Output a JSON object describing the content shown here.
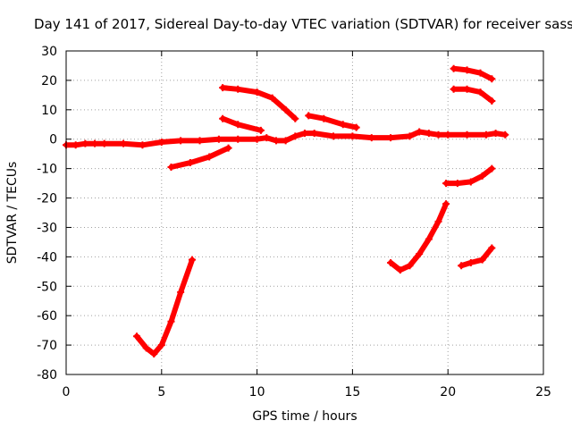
{
  "chart_data": {
    "type": "scatter",
    "title": "Day 141 of 2017, Sidereal Day-to-day VTEC variation (SDTVAR) for receiver sass",
    "xlabel": "GPS time / hours",
    "ylabel": "SDTVAR / TECUs",
    "xlim": [
      0,
      25
    ],
    "ylim": [
      -80,
      30
    ],
    "x_ticks": [
      "0",
      "5",
      "10",
      "15",
      "20",
      "25"
    ],
    "y_ticks": [
      "-80",
      "-70",
      "-60",
      "-50",
      "-40",
      "-30",
      "-20",
      "-10",
      "0",
      "10",
      "20",
      "30"
    ],
    "grid": true,
    "legend": "none",
    "color": "#ff0000",
    "series": [
      {
        "x": [
          0,
          0.5,
          1.0,
          1.5,
          2,
          3,
          4,
          5,
          6,
          7,
          8,
          9,
          10,
          10.5,
          11,
          11.5,
          12,
          12.5,
          13,
          14,
          15,
          16,
          17,
          18,
          18.5,
          19,
          19.5,
          20,
          21,
          22,
          22.5,
          23
        ],
        "y": [
          -2,
          -2,
          -1.5,
          -1.5,
          -1.5,
          -1.5,
          -2,
          -1,
          -0.5,
          -0.5,
          0,
          0,
          0,
          0.5,
          -0.5,
          -0.5,
          1,
          2,
          2,
          1,
          1,
          0.5,
          0.5,
          1,
          2.5,
          2,
          1.5,
          1.5,
          1.5,
          1.5,
          2,
          1.5
        ]
      },
      {
        "x": [
          8.2,
          9,
          10,
          10.8,
          11.5,
          12
        ],
        "y": [
          17.5,
          17,
          16,
          14,
          10,
          7
        ]
      },
      {
        "x": [
          8.2,
          9,
          10.2
        ],
        "y": [
          7,
          5,
          3
        ]
      },
      {
        "x": [
          12.7,
          13.5,
          14.5,
          15.2
        ],
        "y": [
          8,
          7,
          5,
          4
        ]
      },
      {
        "x": [
          5.5,
          6.5,
          7.5,
          8.5
        ],
        "y": [
          -9.5,
          -8,
          -6,
          -3
        ]
      },
      {
        "x": [
          3.7,
          4.2,
          4.6,
          5.0,
          5.5,
          6.0,
          6.6
        ],
        "y": [
          -67,
          -71,
          -73,
          -70,
          -62,
          -52,
          -41
        ]
      },
      {
        "x": [
          17.0,
          17.5,
          18,
          18.5,
          19,
          19.5,
          19.9
        ],
        "y": [
          -42,
          -44.5,
          -43,
          -39,
          -34,
          -28,
          -22
        ]
      },
      {
        "x": [
          19.9,
          20.5,
          21.2,
          21.8,
          22.3
        ],
        "y": [
          -15,
          -15,
          -14.5,
          -12.5,
          -10
        ]
      },
      {
        "x": [
          20.7,
          21.2,
          21.8,
          22.3
        ],
        "y": [
          -43,
          -42,
          -41,
          -37
        ]
      },
      {
        "x": [
          20.3,
          21,
          21.7,
          22.3
        ],
        "y": [
          24,
          23.5,
          22.5,
          20.5
        ]
      },
      {
        "x": [
          20.3,
          21,
          21.7,
          22.3
        ],
        "y": [
          17,
          17,
          16,
          13
        ]
      }
    ]
  }
}
